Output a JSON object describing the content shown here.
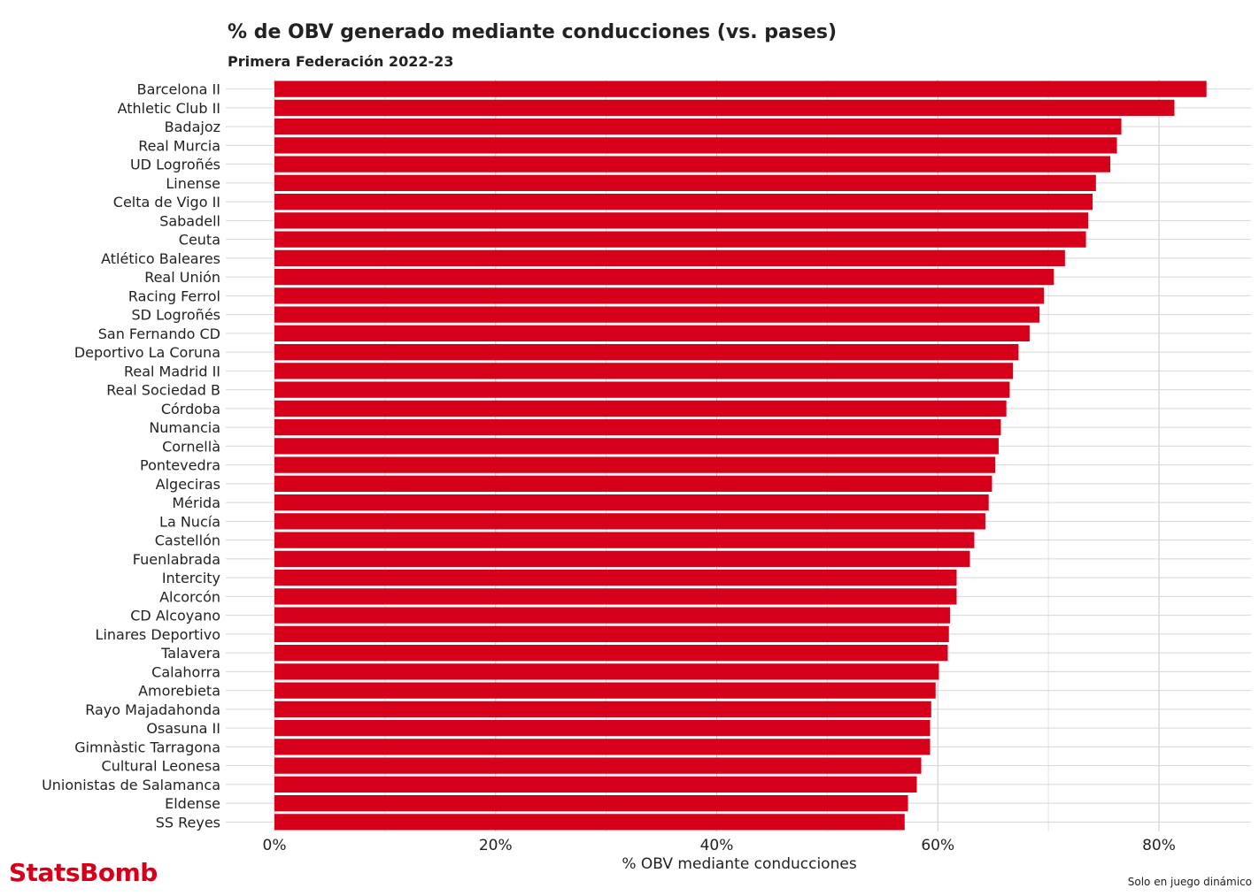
{
  "brand": {
    "logo_text": "StatsBomb",
    "color": "#d7001a"
  },
  "footnote": "Solo en juego dinámico",
  "chart_data": {
    "type": "bar",
    "orientation": "horizontal",
    "title": "% de OBV generado mediante conducciones (vs. pases)",
    "subtitle": "Primera Federación 2022-23",
    "xlabel": "% OBV mediante conducciones",
    "ylabel": "",
    "xlim": [
      0,
      88
    ],
    "xticks": [
      0,
      20,
      40,
      60,
      80
    ],
    "xtick_labels": [
      "0%",
      "20%",
      "40%",
      "60%",
      "80%"
    ],
    "grid": true,
    "bar_color": "#d7001a",
    "categories": [
      "Barcelona II",
      "Athletic Club II",
      "Badajoz",
      "Real Murcia",
      "UD Logroñés",
      "Linense",
      "Celta de Vigo II",
      "Sabadell",
      "Ceuta",
      "Atlético Baleares",
      "Real Unión",
      "Racing Ferrol",
      "SD Logroñés",
      "San Fernando CD",
      "Deportivo La Coruna",
      "Real Madrid II",
      "Real Sociedad B",
      "Córdoba",
      "Numancia",
      "Cornellà",
      "Pontevedra",
      "Algeciras",
      "Mérida",
      "La Nucía",
      "Castellón",
      "Fuenlabrada",
      "Intercity",
      "Alcorcón",
      "CD Alcoyano",
      "Linares Deportivo",
      "Talavera",
      "Calahorra",
      "Amorebieta",
      "Rayo Majadahonda",
      "Osasuna II",
      "Gimnàstic Tarragona",
      "Cultural Leonesa",
      "Unionistas de Salamanca",
      "Eldense",
      "SS Reyes"
    ],
    "values": [
      84.3,
      81.4,
      76.6,
      76.2,
      75.6,
      74.3,
      74.0,
      73.6,
      73.4,
      71.5,
      70.5,
      69.6,
      69.2,
      68.3,
      67.3,
      66.8,
      66.5,
      66.2,
      65.7,
      65.5,
      65.2,
      64.9,
      64.6,
      64.3,
      63.3,
      62.9,
      61.7,
      61.7,
      61.1,
      61.0,
      60.9,
      60.1,
      59.8,
      59.4,
      59.3,
      59.3,
      58.5,
      58.1,
      57.3,
      57.0
    ]
  }
}
